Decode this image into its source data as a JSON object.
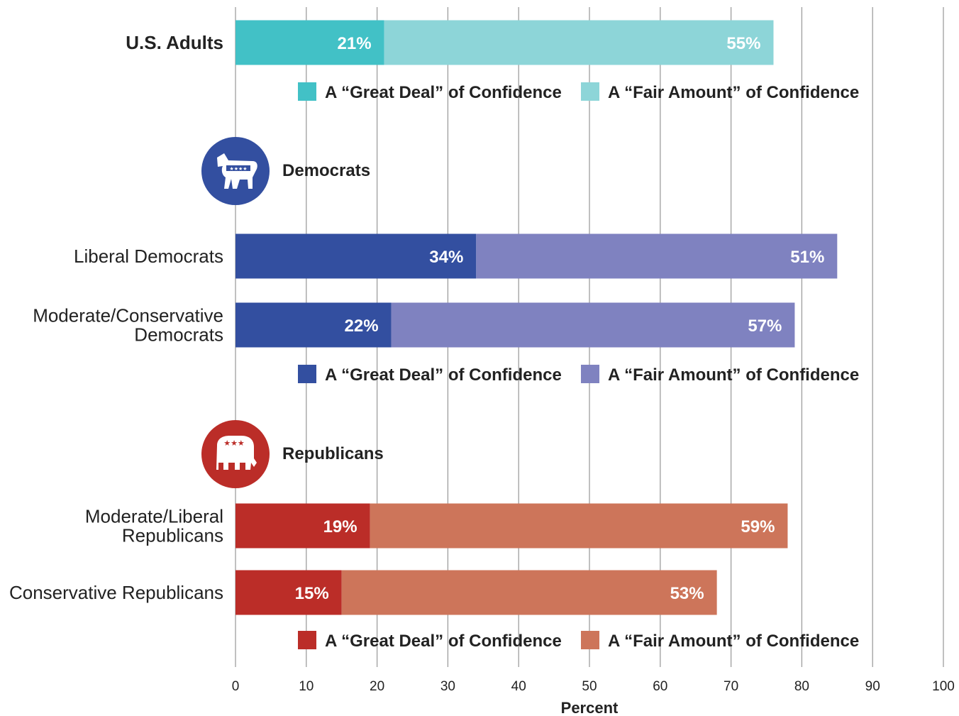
{
  "chart_data": {
    "type": "bar",
    "orientation": "horizontal",
    "stacked": true,
    "xlabel": "Percent",
    "xlim": [
      0,
      100
    ],
    "xticks": [
      "0",
      "10",
      "20",
      "30",
      "40",
      "50",
      "60",
      "70",
      "80",
      "90",
      "100"
    ],
    "grid": true,
    "legend_labels": {
      "great": "A “Great Deal” of Confidence",
      "fair": "A “Fair Amount” of Confidence"
    },
    "groups": [
      {
        "id": "adults",
        "title": "",
        "colors": {
          "great": "#42c1c6",
          "fair": "#8dd5d8"
        },
        "rows": [
          {
            "label": "U.S. Adults",
            "bold": true,
            "great": 21,
            "fair": 55,
            "great_label": "21%",
            "fair_label": "55%"
          }
        ]
      },
      {
        "id": "democrats",
        "title": "Democrats",
        "icon": "donkey-icon",
        "icon_color": "#334fa0",
        "colors": {
          "great": "#334fa0",
          "fair": "#7f82c0"
        },
        "rows": [
          {
            "label": "Liberal Democrats",
            "great": 34,
            "fair": 51,
            "great_label": "34%",
            "fair_label": "51%"
          },
          {
            "label": "Moderate/Conservative Democrats",
            "label_lines": [
              "Moderate/Conservative",
              "Democrats"
            ],
            "great": 22,
            "fair": 57,
            "great_label": "22%",
            "fair_label": "57%"
          }
        ]
      },
      {
        "id": "republicans",
        "title": "Republicans",
        "icon": "elephant-icon",
        "icon_color": "#bb2d28",
        "colors": {
          "great": "#bb2d28",
          "fair": "#cd755a"
        },
        "rows": [
          {
            "label": "Moderate/Liberal Republicans",
            "label_lines": [
              "Moderate/Liberal",
              "Republicans"
            ],
            "great": 19,
            "fair": 59,
            "great_label": "19%",
            "fair_label": "59%"
          },
          {
            "label": "Conservative Republicans",
            "great": 15,
            "fair": 53,
            "great_label": "15%",
            "fair_label": "53%"
          }
        ]
      }
    ]
  }
}
